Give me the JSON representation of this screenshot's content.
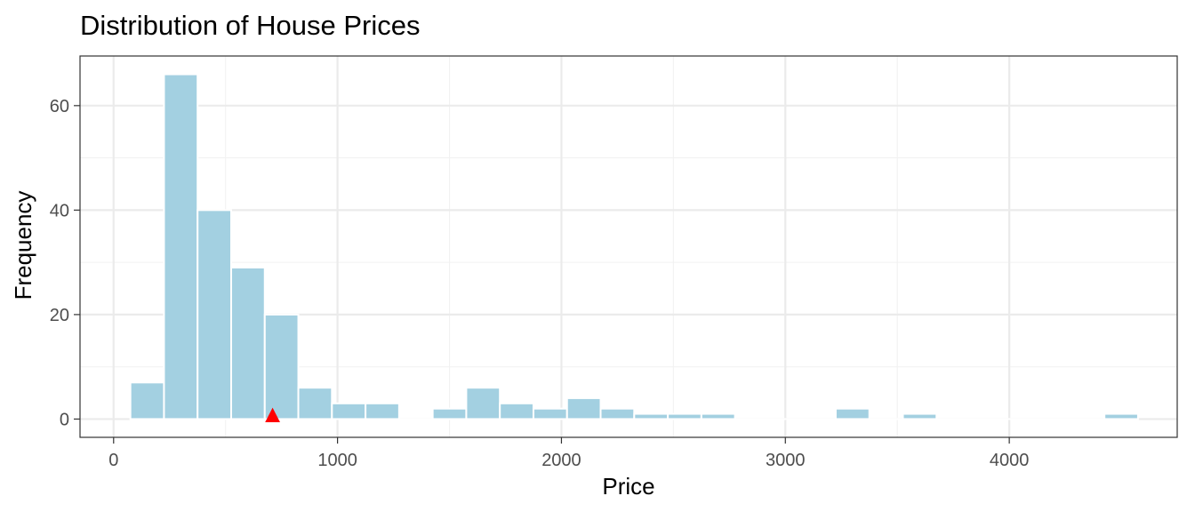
{
  "chart_data": {
    "type": "bar",
    "subtype": "histogram",
    "title": "Distribution of House Prices",
    "xlabel": "Price",
    "ylabel": "Frequency",
    "xlim": [
      -150,
      4750
    ],
    "ylim": [
      -3.5,
      69.5
    ],
    "x_ticks": [
      0,
      1000,
      2000,
      3000,
      4000
    ],
    "y_ticks": [
      0,
      20,
      40,
      60
    ],
    "bin_width": 150,
    "bins": [
      {
        "start": 75,
        "end": 225,
        "count": 7
      },
      {
        "start": 225,
        "end": 375,
        "count": 66
      },
      {
        "start": 375,
        "end": 525,
        "count": 40
      },
      {
        "start": 525,
        "end": 675,
        "count": 29
      },
      {
        "start": 675,
        "end": 825,
        "count": 20
      },
      {
        "start": 825,
        "end": 975,
        "count": 6
      },
      {
        "start": 975,
        "end": 1125,
        "count": 3
      },
      {
        "start": 1125,
        "end": 1275,
        "count": 3
      },
      {
        "start": 1275,
        "end": 1425,
        "count": 0
      },
      {
        "start": 1425,
        "end": 1575,
        "count": 2
      },
      {
        "start": 1575,
        "end": 1725,
        "count": 6
      },
      {
        "start": 1725,
        "end": 1875,
        "count": 3
      },
      {
        "start": 1875,
        "end": 2025,
        "count": 2
      },
      {
        "start": 2025,
        "end": 2175,
        "count": 4
      },
      {
        "start": 2175,
        "end": 2325,
        "count": 2
      },
      {
        "start": 2325,
        "end": 2475,
        "count": 1
      },
      {
        "start": 2475,
        "end": 2625,
        "count": 1
      },
      {
        "start": 2625,
        "end": 2775,
        "count": 1
      },
      {
        "start": 2775,
        "end": 2925,
        "count": 0
      },
      {
        "start": 2925,
        "end": 3075,
        "count": 0
      },
      {
        "start": 3075,
        "end": 3225,
        "count": 0
      },
      {
        "start": 3225,
        "end": 3375,
        "count": 2
      },
      {
        "start": 3375,
        "end": 3525,
        "count": 0
      },
      {
        "start": 3525,
        "end": 3675,
        "count": 1
      },
      {
        "start": 3675,
        "end": 3825,
        "count": 0
      },
      {
        "start": 3825,
        "end": 3975,
        "count": 0
      },
      {
        "start": 3975,
        "end": 4125,
        "count": 0
      },
      {
        "start": 4125,
        "end": 4275,
        "count": 0
      },
      {
        "start": 4275,
        "end": 4425,
        "count": 0
      },
      {
        "start": 4425,
        "end": 4575,
        "count": 1
      }
    ],
    "marker": {
      "shape": "triangle",
      "x": 710,
      "y": 0,
      "color": "#ff0000"
    },
    "bar_color": "#a3d0e1",
    "grid": true,
    "legend": "none"
  }
}
